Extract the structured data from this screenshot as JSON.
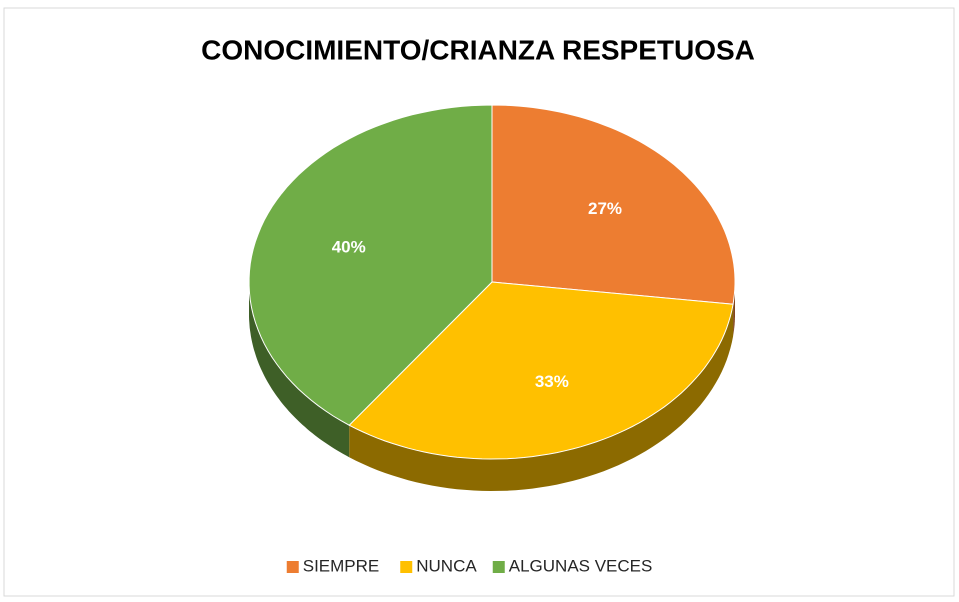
{
  "chart_data": {
    "type": "pie",
    "title": "CONOCIMIENTO/CRIANZA RESPETUOSA",
    "categories": [
      "SIEMPRE",
      "NUNCA",
      "ALGUNAS VECES"
    ],
    "values": [
      27,
      33,
      40
    ],
    "value_labels": [
      "27%",
      "33%",
      "40%"
    ],
    "colors": [
      "#ED7D31",
      "#FFC000",
      "#70AD47"
    ],
    "legend": "bottom"
  }
}
